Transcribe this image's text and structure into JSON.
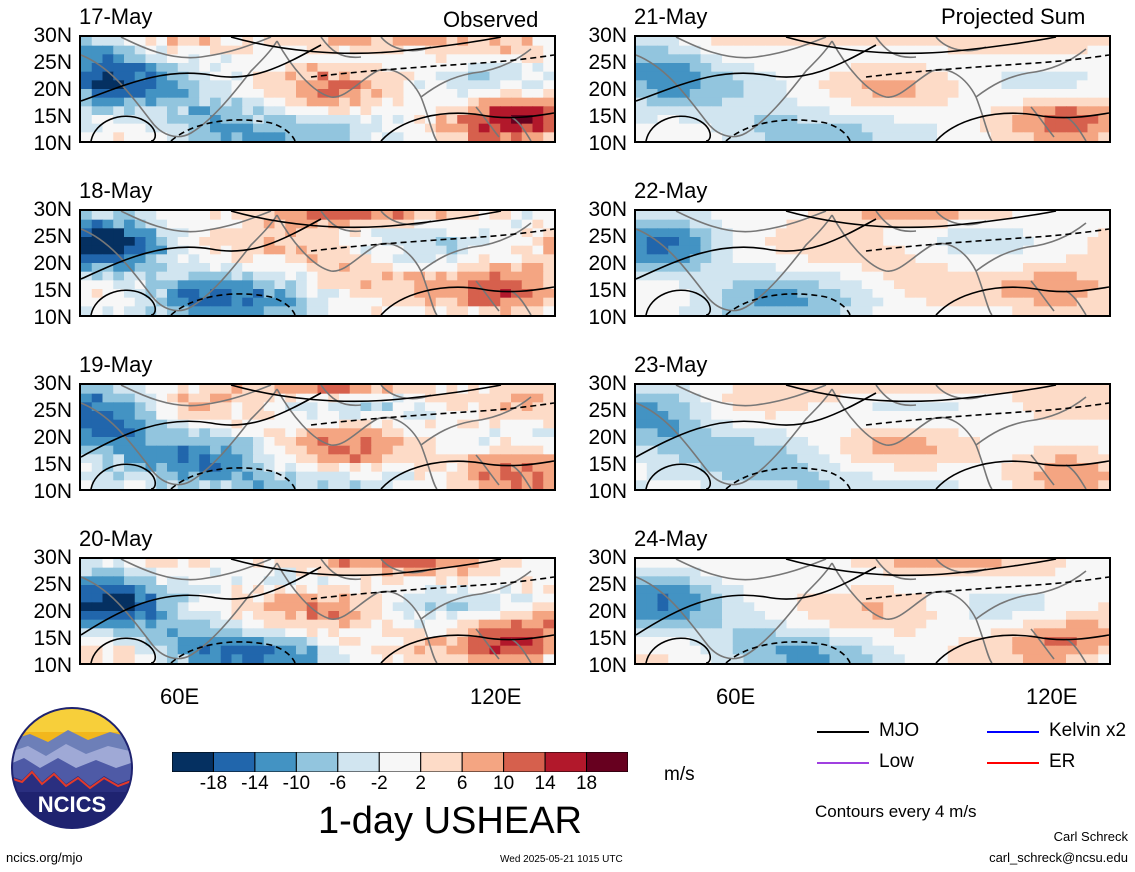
{
  "header": {
    "observed_title": "Observed",
    "projected_title": "Projected Sum"
  },
  "lat_labels": [
    "30N",
    "25N",
    "20N",
    "15N",
    "10N"
  ],
  "lon_labels": [
    "60E",
    "120E"
  ],
  "panels": {
    "observed": [
      {
        "date": "17-May"
      },
      {
        "date": "18-May"
      },
      {
        "date": "19-May"
      },
      {
        "date": "20-May"
      }
    ],
    "projected": [
      {
        "date": "21-May"
      },
      {
        "date": "22-May"
      },
      {
        "date": "23-May"
      },
      {
        "date": "24-May"
      }
    ]
  },
  "colorbar": {
    "ticks": [
      "-18",
      "-14",
      "-10",
      "-6",
      "-2",
      "2",
      "6",
      "10",
      "14",
      "18"
    ],
    "colors": [
      "#053061",
      "#2166ac",
      "#4393c3",
      "#92c5de",
      "#d1e5f0",
      "#f7f7f7",
      "#fddbc7",
      "#f4a582",
      "#d6604d",
      "#b2182b",
      "#67001f"
    ],
    "units": "m/s",
    "title": "1-day USHEAR"
  },
  "legend": {
    "items": [
      {
        "label": "MJO",
        "color": "#000000"
      },
      {
        "label": "Kelvin x2",
        "color": "#0000ff"
      },
      {
        "label": "Low",
        "color": "#a040e0"
      },
      {
        "label": "ER",
        "color": "#ff0000"
      }
    ],
    "note": "Contours every 4 m/s"
  },
  "footer": {
    "logo_text": "NCICS",
    "url": "ncics.org/mjo",
    "timestamp": "Wed 2025-05-21 1015 UTC",
    "author": "Carl Schreck",
    "email": "carl_schreck@ncsu.edu"
  },
  "chart_data": {
    "type": "heatmap",
    "title": "1-day USHEAR",
    "units": "m/s",
    "color_levels": [
      -18,
      -14,
      -10,
      -6,
      -2,
      2,
      6,
      10,
      14,
      18
    ],
    "lat_range": [
      10,
      30
    ],
    "lon_range": [
      40,
      130
    ],
    "lat_ticks": [
      "30N",
      "25N",
      "20N",
      "15N",
      "10N"
    ],
    "lon_ticks": [
      "60E",
      "120E"
    ],
    "series": [
      {
        "name": "Observed",
        "panels": [
          "17-May",
          "18-May",
          "19-May",
          "20-May"
        ]
      },
      {
        "name": "Projected Sum",
        "panels": [
          "21-May",
          "22-May",
          "23-May",
          "24-May"
        ]
      }
    ],
    "contour_legend": [
      "MJO",
      "Kelvin x2",
      "Low",
      "ER"
    ],
    "contour_interval": "Contours every 4 m/s"
  }
}
